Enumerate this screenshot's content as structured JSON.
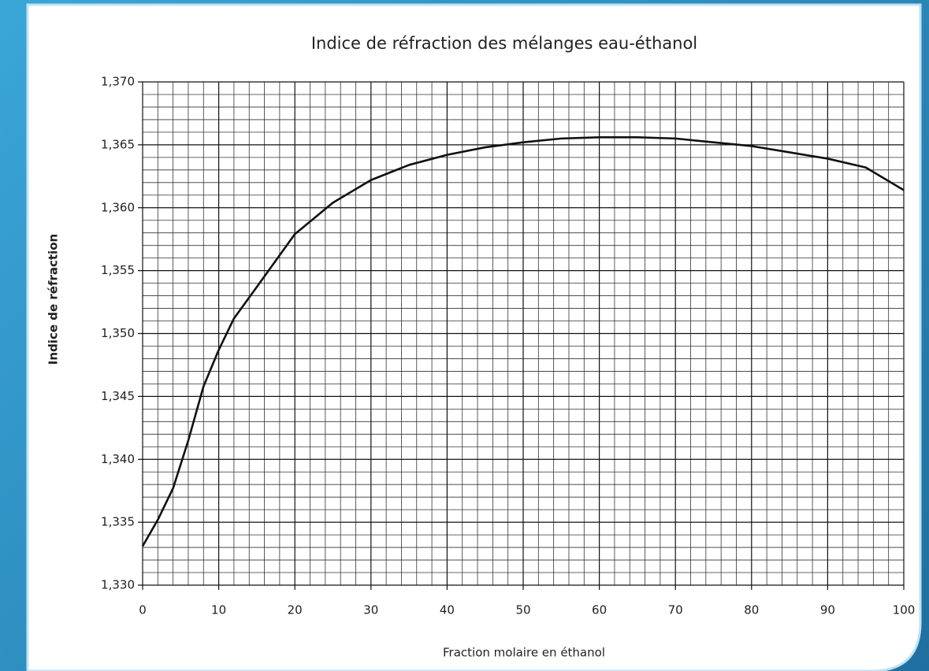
{
  "chart_data": {
    "type": "line",
    "title": "Indice de réfraction des mélanges eau-éthanol",
    "x_label": "Fraction molaire en éthanol",
    "y_label": "Indice de réfraction",
    "x": [
      0,
      2,
      4,
      6,
      8,
      10,
      12,
      15,
      20,
      25,
      30,
      35,
      40,
      45,
      50,
      55,
      60,
      65,
      70,
      75,
      80,
      85,
      90,
      95,
      100
    ],
    "series": [
      {
        "name": "Indice de réfraction",
        "color": "#111111",
        "values": [
          1.3331,
          1.3352,
          1.3377,
          1.3415,
          1.3458,
          1.3487,
          1.3512,
          1.3537,
          1.3579,
          1.3604,
          1.3622,
          1.3634,
          1.3642,
          1.3648,
          1.3652,
          1.3655,
          1.3656,
          1.3656,
          1.3655,
          1.3652,
          1.3649,
          1.3644,
          1.3639,
          1.3632,
          1.3614
        ]
      }
    ],
    "xlim": [
      0,
      100
    ],
    "xticks": [
      0,
      10,
      20,
      30,
      40,
      50,
      60,
      70,
      80,
      90,
      100
    ],
    "ylim": [
      1.33,
      1.37
    ],
    "yticks": [
      {
        "value": 1.33,
        "label": "1,330"
      },
      {
        "value": 1.335,
        "label": "1,335"
      },
      {
        "value": 1.34,
        "label": "1,340"
      },
      {
        "value": 1.345,
        "label": "1,345"
      },
      {
        "value": 1.35,
        "label": "1,350"
      },
      {
        "value": 1.355,
        "label": "1,355"
      },
      {
        "value": 1.36,
        "label": "1,360"
      },
      {
        "value": 1.365,
        "label": "1,365"
      },
      {
        "value": 1.37,
        "label": "1,370"
      }
    ],
    "grid": true,
    "minor_grid": true
  }
}
